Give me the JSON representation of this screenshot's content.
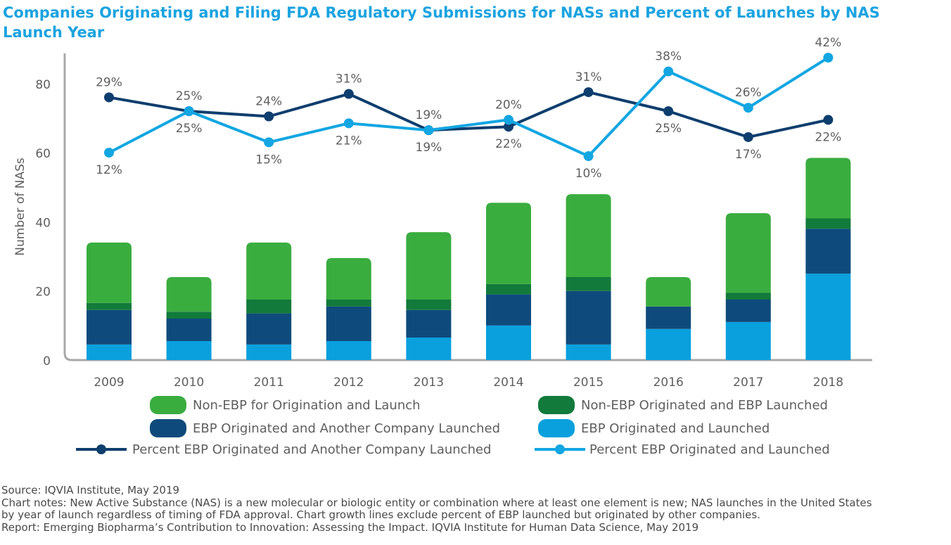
{
  "title": "Companies Originating and Filing FDA Regulatory Submissions for NASs and Percent of Launches by NAS Launch Year",
  "colors": {
    "non_ebp_launch": "#3aad3f",
    "non_ebp_orig_ebp_launch": "#127a3a",
    "ebp_orig_other_launch": "#0e4b7c",
    "ebp_orig_launch": "#0aa0dd",
    "line_dark": "#0e3e6e",
    "line_light": "#12a6e2",
    "axis": "#a8a8a8"
  },
  "chart_data": {
    "type": "bar",
    "stacked": true,
    "categories": [
      "2009",
      "2010",
      "2011",
      "2012",
      "2013",
      "2014",
      "2015",
      "2016",
      "2017",
      "2018"
    ],
    "ylabel": "Number of NASs",
    "yticks": [
      "0",
      "20",
      "40",
      "60",
      "80"
    ],
    "ylim": [
      0,
      90
    ],
    "series": [
      {
        "name": "EBP Originated and Launched",
        "values": [
          4.5,
          5.5,
          4.5,
          5.5,
          6.5,
          10,
          4.5,
          9,
          11,
          25
        ]
      },
      {
        "name": "EBP Originated and Another Company Launched",
        "values": [
          10,
          6.5,
          9,
          10,
          8,
          9,
          15.5,
          6.5,
          6.5,
          13
        ]
      },
      {
        "name": "Non-EBP Originated and EBP Launched",
        "values": [
          2,
          2,
          4,
          2,
          3,
          3,
          4,
          0,
          2,
          3
        ]
      },
      {
        "name": "Non-EBP for Origination and Launch",
        "values": [
          17.5,
          10,
          16.5,
          12,
          19.5,
          23.5,
          24,
          8.5,
          23,
          17.5
        ]
      }
    ],
    "lines": [
      {
        "name": "Percent EBP Originated and Another Company Launched",
        "values": [
          76,
          72,
          70.5,
          77,
          66.5,
          67.5,
          77.5,
          72,
          64.5,
          69.5
        ],
        "labels": [
          "29%",
          "25%",
          "24%",
          "31%",
          "19%",
          "22%",
          "31%",
          "25%",
          "17%",
          "22%"
        ]
      },
      {
        "name": "Percent EBP Originated and Launched",
        "values": [
          60,
          72,
          63,
          68.5,
          66.5,
          69.5,
          59,
          83.5,
          73,
          87.5
        ],
        "labels": [
          "12%",
          "25%",
          "15%",
          "21%",
          "19%",
          "20%",
          "10%",
          "38%",
          "26%",
          "42%"
        ]
      }
    ],
    "legend": [
      "Non-EBP for Origination and Launch",
      "Non-EBP Originated and EBP Launched",
      "EBP Originated and Another Company Launched",
      "EBP Originated and Launched",
      "Percent EBP Originated and Another Company Launched",
      "Percent EBP Originated and Launched"
    ]
  },
  "notes": {
    "source": "Source: IQVIA Institute, May 2019",
    "chart_notes_1": "Chart notes: New Active Substance (NAS) is a new molecular or biologic entity or combination where at least one element is new; NAS launches in the United States",
    "chart_notes_2": "by year of launch regardless of timing of FDA approval. Chart growth lines exclude percent of EBP launched but originated by other companies.",
    "report": "Report: Emerging Biopharma’s Contribution to Innovation: Assessing the Impact. IQVIA Institute for Human Data Science, May 2019"
  }
}
